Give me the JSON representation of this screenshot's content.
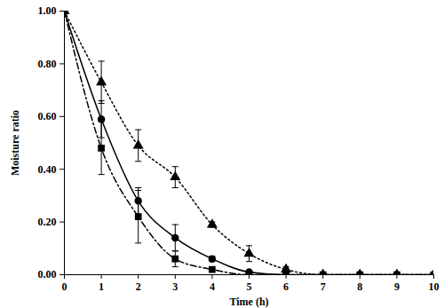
{
  "chart_data": {
    "type": "line",
    "x_label": "Time (h)",
    "y_label": "Moisture ratio",
    "x": [
      0,
      1,
      2,
      3,
      4,
      5,
      6,
      7,
      8,
      9,
      10
    ],
    "xlim": [
      0,
      10
    ],
    "xticks": [
      0,
      1,
      2,
      3,
      4,
      5,
      6,
      7,
      8,
      9,
      10
    ],
    "ylim": [
      0,
      1
    ],
    "yticks": [
      {
        "value": 0,
        "label": "0.00"
      },
      {
        "value": 0.2,
        "label": "0.20"
      },
      {
        "value": 0.4,
        "label": "0.40"
      },
      {
        "value": 0.6,
        "label": "0.60"
      },
      {
        "value": 0.8,
        "label": "0.80"
      },
      {
        "value": 1,
        "label": "1.00"
      }
    ],
    "grid": false,
    "series": [
      {
        "color": "#000000",
        "marker": "triangle",
        "line_style": "dotted",
        "values": [
          1.0,
          0.73,
          0.49,
          0.37,
          0.19,
          0.08,
          0.02,
          0.0,
          0.0,
          0.0,
          0.0
        ],
        "errors": [
          0,
          0.08,
          0.06,
          0.04,
          0.01,
          0.03,
          0.01,
          0,
          0,
          0,
          0
        ]
      },
      {
        "color": "#000000",
        "marker": "circle",
        "line_style": "solid",
        "values": [
          1.0,
          0.59,
          0.28,
          0.14,
          0.06,
          0.01,
          0.0,
          0.0,
          0.0,
          0.0,
          0.0
        ],
        "errors": [
          0,
          0.07,
          0.05,
          0.05,
          0.01,
          0.005,
          0,
          0,
          0,
          0,
          0
        ]
      },
      {
        "color": "#000000",
        "marker": "square",
        "line_style": "dashdot",
        "values": [
          1.0,
          0.48,
          0.22,
          0.06,
          0.02,
          0.0,
          0.0,
          0.0,
          0.0,
          0.0,
          0.0
        ],
        "errors": [
          0,
          0.1,
          0.1,
          0.03,
          0,
          0,
          0,
          0,
          0,
          0,
          0
        ]
      }
    ]
  }
}
